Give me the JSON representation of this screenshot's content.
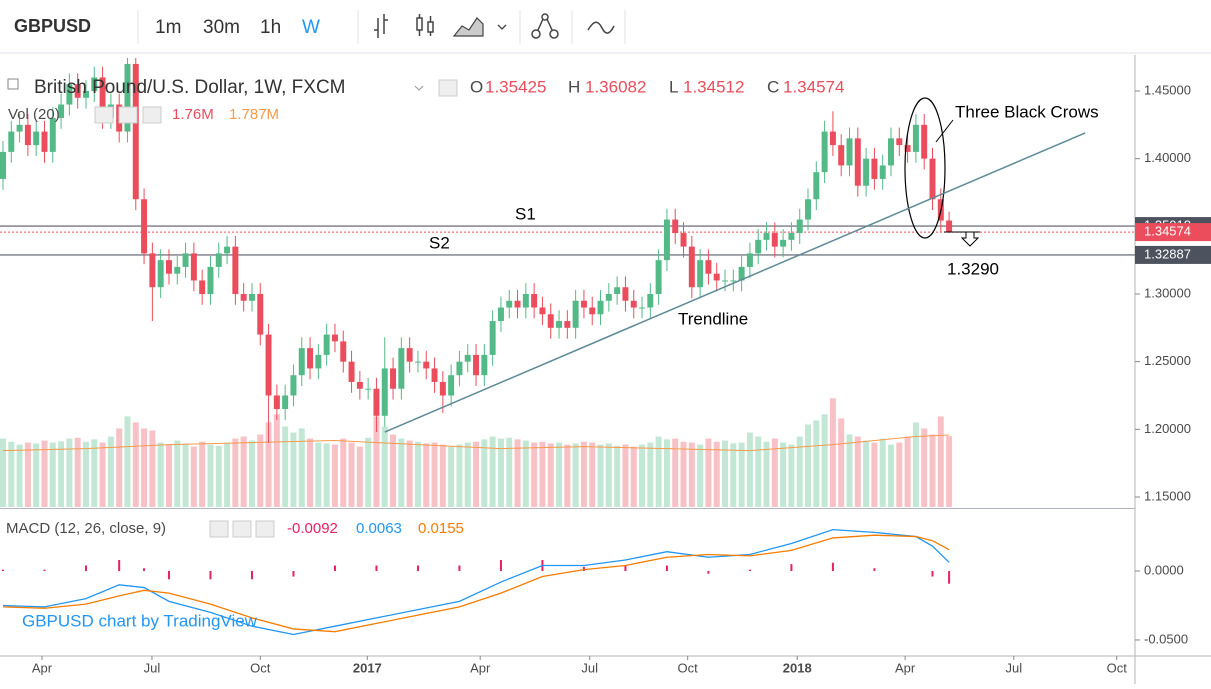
{
  "toolbar": {
    "symbol": "GBPUSD",
    "intervals": [
      "1m",
      "30m",
      "1h",
      "W"
    ]
  },
  "chart_data": {
    "type": "candlestick",
    "title": "British Pound/U.S. Dollar, 1W, FXCM",
    "ohlc_letters": [
      "O",
      "H",
      "L",
      "C"
    ],
    "open": [
      1.385,
      1.405,
      1.42,
      1.425,
      1.41,
      1.42,
      1.405,
      1.43,
      1.44,
      1.455,
      1.445,
      1.45,
      1.46,
      1.43,
      1.44,
      1.42,
      1.47,
      1.37,
      1.33,
      1.305,
      1.325,
      1.315,
      1.32,
      1.33,
      1.31,
      1.3,
      1.32,
      1.33,
      1.335,
      1.3,
      1.295,
      1.3,
      1.27,
      1.225,
      1.215,
      1.225,
      1.24,
      1.26,
      1.245,
      1.255,
      1.27,
      1.265,
      1.25,
      1.235,
      1.23,
      1.23,
      1.21,
      1.245,
      1.23,
      1.26,
      1.25,
      1.25,
      1.245,
      1.235,
      1.225,
      1.24,
      1.25,
      1.255,
      1.24,
      1.255,
      1.28,
      1.29,
      1.295,
      1.29,
      1.3,
      1.29,
      1.285,
      1.275,
      1.28,
      1.275,
      1.295,
      1.29,
      1.285,
      1.295,
      1.3,
      1.305,
      1.295,
      1.29,
      1.29,
      1.3,
      1.325,
      1.355,
      1.345,
      1.335,
      1.305,
      1.325,
      1.315,
      1.31,
      1.31,
      1.31,
      1.32,
      1.33,
      1.34,
      1.345,
      1.335,
      1.34,
      1.345,
      1.355,
      1.37,
      1.39,
      1.42,
      1.41,
      1.395,
      1.415,
      1.38,
      1.4,
      1.385,
      1.395,
      1.415,
      1.41,
      1.405,
      1.425,
      1.4,
      1.37,
      1.35425
    ],
    "high": [
      1.413,
      1.428,
      1.433,
      1.433,
      1.428,
      1.428,
      1.438,
      1.448,
      1.463,
      1.463,
      1.458,
      1.468,
      1.468,
      1.448,
      1.448,
      1.478,
      1.478,
      1.378,
      1.338,
      1.333,
      1.333,
      1.328,
      1.338,
      1.338,
      1.318,
      1.328,
      1.338,
      1.343,
      1.343,
      1.308,
      1.308,
      1.308,
      1.278,
      1.233,
      1.233,
      1.248,
      1.268,
      1.268,
      1.263,
      1.278,
      1.278,
      1.273,
      1.258,
      1.243,
      1.238,
      1.238,
      1.268,
      1.253,
      1.268,
      1.268,
      1.258,
      1.258,
      1.253,
      1.243,
      1.248,
      1.258,
      1.263,
      1.263,
      1.263,
      1.288,
      1.298,
      1.303,
      1.303,
      1.308,
      1.308,
      1.298,
      1.293,
      1.288,
      1.288,
      1.303,
      1.303,
      1.298,
      1.303,
      1.308,
      1.313,
      1.313,
      1.303,
      1.298,
      1.308,
      1.333,
      1.363,
      1.363,
      1.353,
      1.343,
      1.333,
      1.333,
      1.323,
      1.318,
      1.318,
      1.328,
      1.338,
      1.348,
      1.353,
      1.353,
      1.348,
      1.353,
      1.363,
      1.378,
      1.398,
      1.428,
      1.435,
      1.418,
      1.423,
      1.423,
      1.408,
      1.408,
      1.403,
      1.423,
      1.423,
      1.418,
      1.433,
      1.433,
      1.408,
      1.378,
      1.36082
    ],
    "low": [
      1.377,
      1.397,
      1.412,
      1.402,
      1.402,
      1.397,
      1.397,
      1.422,
      1.432,
      1.437,
      1.437,
      1.442,
      1.422,
      1.422,
      1.412,
      1.412,
      1.362,
      1.322,
      1.28,
      1.297,
      1.307,
      1.307,
      1.312,
      1.302,
      1.292,
      1.292,
      1.312,
      1.322,
      1.292,
      1.287,
      1.287,
      1.262,
      1.19,
      1.207,
      1.207,
      1.217,
      1.232,
      1.237,
      1.237,
      1.247,
      1.257,
      1.242,
      1.227,
      1.222,
      1.222,
      1.198,
      1.202,
      1.222,
      1.222,
      1.242,
      1.242,
      1.237,
      1.227,
      1.212,
      1.217,
      1.232,
      1.242,
      1.232,
      1.232,
      1.247,
      1.272,
      1.282,
      1.282,
      1.282,
      1.282,
      1.277,
      1.267,
      1.267,
      1.267,
      1.267,
      1.282,
      1.277,
      1.277,
      1.287,
      1.292,
      1.287,
      1.282,
      1.282,
      1.282,
      1.292,
      1.317,
      1.337,
      1.327,
      1.297,
      1.297,
      1.307,
      1.302,
      1.302,
      1.302,
      1.302,
      1.312,
      1.322,
      1.332,
      1.327,
      1.327,
      1.332,
      1.337,
      1.347,
      1.362,
      1.382,
      1.402,
      1.387,
      1.387,
      1.372,
      1.372,
      1.377,
      1.377,
      1.387,
      1.402,
      1.397,
      1.397,
      1.392,
      1.362,
      1.346,
      1.34512
    ],
    "close": [
      1.405,
      1.42,
      1.425,
      1.41,
      1.42,
      1.405,
      1.43,
      1.44,
      1.455,
      1.445,
      1.45,
      1.46,
      1.43,
      1.44,
      1.42,
      1.47,
      1.37,
      1.33,
      1.305,
      1.325,
      1.315,
      1.32,
      1.33,
      1.31,
      1.3,
      1.32,
      1.33,
      1.335,
      1.3,
      1.295,
      1.3,
      1.27,
      1.225,
      1.215,
      1.225,
      1.24,
      1.26,
      1.245,
      1.255,
      1.27,
      1.265,
      1.25,
      1.235,
      1.23,
      1.23,
      1.21,
      1.245,
      1.23,
      1.26,
      1.25,
      1.25,
      1.245,
      1.235,
      1.225,
      1.24,
      1.25,
      1.255,
      1.24,
      1.255,
      1.28,
      1.29,
      1.295,
      1.29,
      1.3,
      1.29,
      1.285,
      1.275,
      1.28,
      1.275,
      1.295,
      1.29,
      1.285,
      1.295,
      1.3,
      1.305,
      1.295,
      1.29,
      1.29,
      1.3,
      1.325,
      1.355,
      1.345,
      1.335,
      1.305,
      1.325,
      1.315,
      1.31,
      1.31,
      1.31,
      1.32,
      1.33,
      1.34,
      1.345,
      1.335,
      1.34,
      1.345,
      1.355,
      1.37,
      1.39,
      1.42,
      1.41,
      1.395,
      1.415,
      1.38,
      1.4,
      1.385,
      1.395,
      1.415,
      1.41,
      1.405,
      1.425,
      1.4,
      1.37,
      1.35425,
      1.34574
    ],
    "up_color": "#53b987",
    "down_color": "#eb4d5c",
    "xlim": [
      -0.36,
      136.4
    ],
    "xticks": [
      {
        "value": 4.7,
        "label": "Apr"
      },
      {
        "value": 17.95,
        "label": "Jul"
      },
      {
        "value": 31,
        "label": "Oct"
      },
      {
        "value": 43.9,
        "label": "2017"
      },
      {
        "value": 57.5,
        "label": "Apr"
      },
      {
        "value": 70.7,
        "label": "Jul"
      },
      {
        "value": 82.5,
        "label": "Oct"
      },
      {
        "value": 95.7,
        "label": "2018"
      },
      {
        "value": 108.7,
        "label": "Apr"
      },
      {
        "value": 121.8,
        "label": "Jul"
      },
      {
        "value": 134.2,
        "label": "Oct"
      }
    ],
    "ylim": [
      1.1426,
      1.4729
    ],
    "yticks": [
      {
        "value": 1.45,
        "label": "1.45000"
      },
      {
        "value": 1.4,
        "label": "1.40000"
      },
      {
        "value": 1.35,
        "label": "1.35000"
      },
      {
        "value": 1.3,
        "label": "1.30000"
      },
      {
        "value": 1.25,
        "label": "1.25000"
      },
      {
        "value": 1.2,
        "label": "1.20000"
      },
      {
        "value": 1.15,
        "label": "1.15000"
      }
    ],
    "levels": [
      {
        "name": "S1",
        "value": 1.35018
      },
      {
        "name": "S2",
        "value": 1.32887
      }
    ],
    "annotations": [
      "Three Black Crows",
      "1.3290"
    ],
    "trendline": {
      "label": "Trendline",
      "points": [
        [
          46,
          1.198
        ],
        [
          130.4,
          1.419
        ]
      ]
    },
    "volume": {
      "name": "Vol (20)",
      "ylim": [
        0,
        11.1
      ],
      "last_value_label": "1.76M",
      "values": [
        1.7,
        1.62,
        1.55,
        1.6,
        1.58,
        1.65,
        1.6,
        1.63,
        1.7,
        1.72,
        1.62,
        1.68,
        1.6,
        1.75,
        1.95,
        2.25,
        2.1,
        1.95,
        1.9,
        1.6,
        1.55,
        1.65,
        1.58,
        1.5,
        1.62,
        1.55,
        1.52,
        1.6,
        1.7,
        1.75,
        1.65,
        1.8,
        2.1,
        2.3,
        2.0,
        1.85,
        1.95,
        1.7,
        1.6,
        1.58,
        1.55,
        1.7,
        1.6,
        1.5,
        1.72,
        2.25,
        2.0,
        1.8,
        1.7,
        1.65,
        1.62,
        1.58,
        1.6,
        1.55,
        1.5,
        1.55,
        1.6,
        1.62,
        1.68,
        1.75,
        1.7,
        1.72,
        1.68,
        1.65,
        1.6,
        1.62,
        1.58,
        1.6,
        1.55,
        1.58,
        1.62,
        1.6,
        1.55,
        1.58,
        1.52,
        1.55,
        1.5,
        1.55,
        1.6,
        1.75,
        1.68,
        1.7,
        1.62,
        1.6,
        1.55,
        1.7,
        1.62,
        1.65,
        1.58,
        1.6,
        1.85,
        1.75,
        1.62,
        1.7,
        1.6,
        1.55,
        1.75,
        2.05,
        2.15,
        2.3,
        2.7,
        2.2,
        1.8,
        1.75,
        1.65,
        1.6,
        1.7,
        1.55,
        1.6,
        1.75,
        2.1,
        1.95,
        1.8,
        2.25,
        1.76
      ],
      "ma": {
        "color": "#f79a4a",
        "x": [
          0,
          10,
          20,
          30,
          40,
          50,
          60,
          70,
          80,
          90,
          100,
          110,
          114
        ],
        "values": [
          1.4,
          1.45,
          1.55,
          1.6,
          1.65,
          1.55,
          1.45,
          1.5,
          1.45,
          1.4,
          1.55,
          1.75,
          1.787
        ],
        "last_value_label": "1.787M"
      }
    },
    "macd": {
      "title": "MACD (12, 26, close, 9)",
      "ylim": [
        -0.0609,
        0.0428
      ],
      "yticks": [
        {
          "value": 0,
          "label": "0.0000"
        },
        {
          "value": -0.05,
          "label": "-0.0500"
        }
      ],
      "x": [
        0,
        5,
        10,
        14,
        17,
        20,
        25,
        30,
        35,
        40,
        45,
        50,
        55,
        60,
        65,
        70,
        75,
        80,
        85,
        90,
        95,
        100,
        105,
        110,
        112,
        114
      ],
      "histogram": [
        0.001,
        0.001,
        0.004,
        0.008,
        0.002,
        -0.006,
        -0.006,
        -0.006,
        -0.004,
        0.004,
        0.004,
        0.004,
        0.004,
        0.008,
        0.008,
        0.003,
        0.004,
        0.004,
        -0.002,
        0.001,
        0.005,
        0.006,
        0.002,
        0,
        -0.004,
        -0.0092
      ],
      "macd": [
        -0.025,
        -0.026,
        -0.02,
        -0.01,
        -0.012,
        -0.022,
        -0.03,
        -0.04,
        -0.046,
        -0.04,
        -0.034,
        -0.028,
        -0.022,
        -0.008,
        0.004,
        0.004,
        0.008,
        0.014,
        0.01,
        0.012,
        0.02,
        0.03,
        0.028,
        0.025,
        0.018,
        0.0063
      ],
      "signal": [
        -0.026,
        -0.027,
        -0.024,
        -0.018,
        -0.014,
        -0.016,
        -0.024,
        -0.034,
        -0.042,
        -0.044,
        -0.038,
        -0.032,
        -0.026,
        -0.016,
        -0.004,
        0.001,
        0.004,
        0.01,
        0.012,
        0.011,
        0.015,
        0.024,
        0.026,
        0.025,
        0.022,
        0.0155
      ],
      "colors": {
        "histogram": "#e91e63",
        "macd": "#2196f3",
        "signal": "#f57c00"
      }
    },
    "watermark": "GBPUSD chart by TradingView"
  }
}
